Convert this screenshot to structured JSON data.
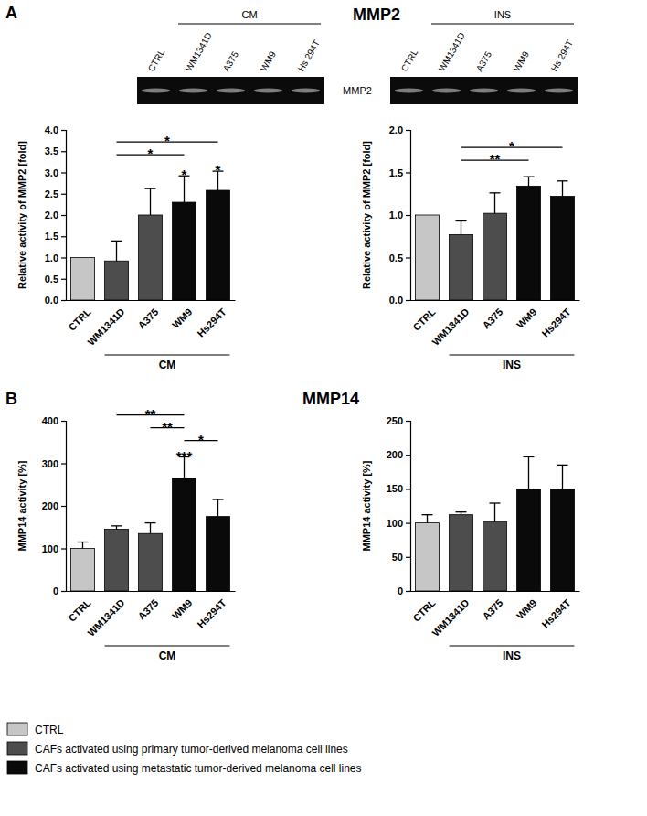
{
  "figure": {
    "panels": [
      {
        "label": "A",
        "title": "MMP2",
        "band_label": "MMP2",
        "gels": [
          {
            "group": "CM",
            "lanes": [
              "CTRL",
              "WM1341D",
              "A375",
              "WM9",
              "Hs 294T"
            ]
          },
          {
            "group": "INS",
            "lanes": [
              "CTRL",
              "WM1341D",
              "A375",
              "WM9",
              "Hs 294T"
            ]
          }
        ]
      },
      {
        "label": "B",
        "title": "MMP14"
      }
    ],
    "legend": [
      {
        "name": "CTRL",
        "color": "#c6c6c6"
      },
      {
        "name": "CAFs activated using primary tumor-derived melanoma cell lines",
        "color": "#4d4d4d"
      },
      {
        "name": "CAFs activated using metastatic tumor-derived melanoma cell lines",
        "color": "#0a0a0a"
      }
    ]
  },
  "chart_data": [
    {
      "type": "bar",
      "ylabel": "Relative activity of MMP2 [fold]",
      "categories": [
        "CTRL",
        "WM1341D",
        "A375",
        "WM9",
        "Hs294T"
      ],
      "values": [
        1.0,
        0.92,
        2.0,
        2.3,
        2.58
      ],
      "errors": [
        0,
        0.47,
        0.62,
        0.62,
        0.45
      ],
      "colors": [
        "#c6c6c6",
        "#4d4d4d",
        "#4d4d4d",
        "#0a0a0a",
        "#0a0a0a"
      ],
      "ylim": [
        0,
        4
      ],
      "yticks": [
        {
          "value": 0,
          "label": "0.0"
        },
        {
          "value": 0.5,
          "label": "0.5"
        },
        {
          "value": 1,
          "label": "1.0"
        },
        {
          "value": 1.5,
          "label": "1.5"
        },
        {
          "value": 2,
          "label": "2.0"
        },
        {
          "value": 2.5,
          "label": "2.5"
        },
        {
          "value": 3,
          "label": "3.0"
        },
        {
          "value": 3.5,
          "label": "3.5"
        },
        {
          "value": 4,
          "label": "4.0"
        }
      ],
      "group_label": "CM",
      "annotations": [
        null,
        null,
        null,
        "*",
        "*"
      ],
      "comparisons": [
        {
          "from": "WM1341D",
          "to": "WM9",
          "label": "*"
        },
        {
          "from": "WM1341D",
          "to": "Hs294T",
          "label": "*"
        }
      ]
    },
    {
      "type": "bar",
      "ylabel": "Relative activity of MMP2 [fold]",
      "categories": [
        "CTRL",
        "WM1341D",
        "A375",
        "WM9",
        "Hs294T"
      ],
      "values": [
        1.0,
        0.77,
        1.02,
        1.34,
        1.22
      ],
      "errors": [
        0,
        0.16,
        0.24,
        0.11,
        0.18
      ],
      "colors": [
        "#c6c6c6",
        "#4d4d4d",
        "#4d4d4d",
        "#0a0a0a",
        "#0a0a0a"
      ],
      "ylim": [
        0,
        2
      ],
      "yticks": [
        {
          "value": 0,
          "label": "0.0"
        },
        {
          "value": 0.5,
          "label": "0.5"
        },
        {
          "value": 1,
          "label": "1.0"
        },
        {
          "value": 1.5,
          "label": "1.5"
        },
        {
          "value": 2,
          "label": "2.0"
        }
      ],
      "group_label": "INS",
      "comparisons": [
        {
          "from": "WM1341D",
          "to": "WM9",
          "label": "**"
        },
        {
          "from": "WM1341D",
          "to": "Hs294T",
          "label": "*"
        }
      ]
    },
    {
      "type": "bar",
      "ylabel": "MMP14 activity [%]",
      "categories": [
        "CTRL",
        "WM1341D",
        "A375",
        "WM9",
        "Hs294T"
      ],
      "values": [
        100,
        145,
        135,
        265,
        175
      ],
      "errors": [
        15,
        8,
        25,
        50,
        40
      ],
      "colors": [
        "#c6c6c6",
        "#4d4d4d",
        "#4d4d4d",
        "#0a0a0a",
        "#0a0a0a"
      ],
      "ylim": [
        0,
        400
      ],
      "yticks": [
        0,
        100,
        200,
        300,
        400
      ],
      "group_label": "CM",
      "annotations": [
        null,
        null,
        null,
        "***",
        null
      ],
      "comparisons": [
        {
          "from": "WM9",
          "to": "Hs294T",
          "label": "*"
        },
        {
          "from": "A375",
          "to": "WM9",
          "label": "**"
        },
        {
          "from": "WM1341D",
          "to": "WM9",
          "label": "**"
        }
      ]
    },
    {
      "type": "bar",
      "ylabel": "MMP14 activity [%]",
      "categories": [
        "CTRL",
        "WM1341D",
        "A375",
        "WM9",
        "Hs294T"
      ],
      "values": [
        100,
        112,
        102,
        150,
        150
      ],
      "errors": [
        12,
        4,
        27,
        47,
        35
      ],
      "colors": [
        "#c6c6c6",
        "#4d4d4d",
        "#4d4d4d",
        "#0a0a0a",
        "#0a0a0a"
      ],
      "ylim": [
        0,
        250
      ],
      "yticks": [
        0,
        50,
        100,
        150,
        200,
        250
      ],
      "group_label": "INS"
    }
  ]
}
